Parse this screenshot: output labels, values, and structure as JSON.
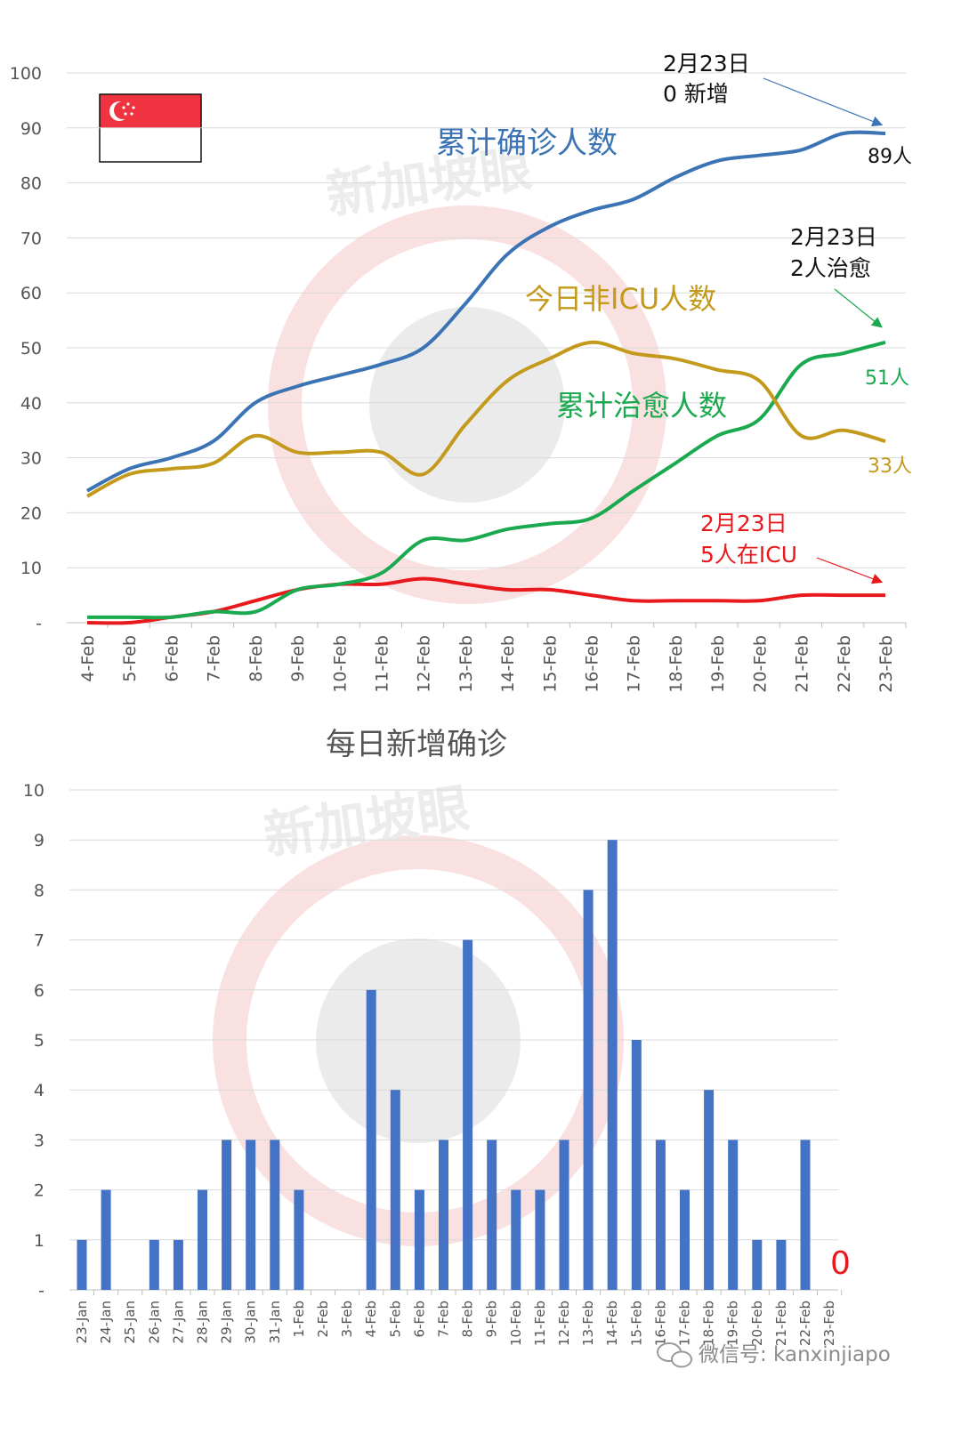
{
  "flag": {
    "name": "singapore-flag",
    "colors": {
      "red": "#ef3340",
      "white": "#ffffff"
    }
  },
  "watermark": {
    "text": "新加坡眼",
    "color": "#f3c4c4"
  },
  "footer": {
    "text": "微信号: kanxinjiapo",
    "icon": "wechat-icon"
  },
  "chart_data": [
    {
      "type": "line",
      "title": "",
      "xlabel": "",
      "ylabel": "",
      "ylim": [
        0,
        100
      ],
      "yticks": [
        "-",
        "10",
        "20",
        "30",
        "40",
        "50",
        "60",
        "70",
        "80",
        "90",
        "100"
      ],
      "grid": true,
      "categories": [
        "4-Feb",
        "5-Feb",
        "6-Feb",
        "7-Feb",
        "8-Feb",
        "9-Feb",
        "10-Feb",
        "11-Feb",
        "12-Feb",
        "13-Feb",
        "14-Feb",
        "15-Feb",
        "16-Feb",
        "17-Feb",
        "18-Feb",
        "19-Feb",
        "20-Feb",
        "21-Feb",
        "22-Feb",
        "23-Feb"
      ],
      "series": [
        {
          "name": "累计确诊人数",
          "color": "#3b73b4",
          "values": [
            24,
            28,
            30,
            33,
            40,
            43,
            45,
            47,
            50,
            58,
            67,
            72,
            75,
            77,
            81,
            84,
            85,
            86,
            89,
            89
          ]
        },
        {
          "name": "今日非ICU人数",
          "color": "#c49a1c",
          "values": [
            23,
            27,
            28,
            29,
            34,
            31,
            31,
            31,
            27,
            36,
            44,
            48,
            51,
            49,
            48,
            46,
            44,
            34,
            35,
            33
          ]
        },
        {
          "name": "累计治愈人数",
          "color": "#1aa94f",
          "values": [
            1,
            1,
            1,
            2,
            2,
            6,
            7,
            9,
            15,
            15,
            17,
            18,
            19,
            24,
            29,
            34,
            37,
            47,
            49,
            51
          ]
        },
        {
          "name": "",
          "color": "#e8191c",
          "values": [
            0,
            0,
            1,
            2,
            4,
            6,
            7,
            7,
            8,
            7,
            6,
            6,
            5,
            4,
            4,
            4,
            4,
            5,
            5,
            5
          ]
        }
      ],
      "end_labels": [
        "89人",
        "33人",
        "51人"
      ],
      "annotations": [
        {
          "lines": [
            "2月23日",
            "0 新增"
          ],
          "color": "#111111",
          "arrow_color": "#3b73b4"
        },
        {
          "lines": [
            "2月23日",
            "2人治愈"
          ],
          "color": "#111111",
          "arrow_color": "#1aa94f"
        },
        {
          "lines": [
            "2月23日",
            "5人在ICU"
          ],
          "color": "#e8191c",
          "arrow_color": "#e8191c"
        }
      ]
    },
    {
      "type": "bar",
      "title": "每日新增确诊",
      "xlabel": "",
      "ylabel": "",
      "ylim": [
        0,
        10
      ],
      "yticks": [
        "-",
        "1",
        "2",
        "3",
        "4",
        "5",
        "6",
        "7",
        "8",
        "9",
        "10"
      ],
      "grid": true,
      "color": "#4472c4",
      "categories": [
        "23-Jan",
        "24-Jan",
        "25-Jan",
        "26-Jan",
        "27-Jan",
        "28-Jan",
        "29-Jan",
        "30-Jan",
        "31-Jan",
        "1-Feb",
        "2-Feb",
        "3-Feb",
        "4-Feb",
        "5-Feb",
        "6-Feb",
        "7-Feb",
        "8-Feb",
        "9-Feb",
        "10-Feb",
        "11-Feb",
        "12-Feb",
        "13-Feb",
        "14-Feb",
        "15-Feb",
        "16-Feb",
        "17-Feb",
        "18-Feb",
        "19-Feb",
        "20-Feb",
        "21-Feb",
        "22-Feb",
        "23-Feb"
      ],
      "values": [
        1,
        2,
        0,
        1,
        1,
        2,
        3,
        3,
        3,
        2,
        0,
        0,
        6,
        4,
        2,
        3,
        7,
        3,
        2,
        2,
        3,
        8,
        9,
        5,
        3,
        2,
        4,
        3,
        1,
        1,
        3,
        0
      ],
      "last_label": "0",
      "last_label_color": "#e8191c"
    }
  ]
}
